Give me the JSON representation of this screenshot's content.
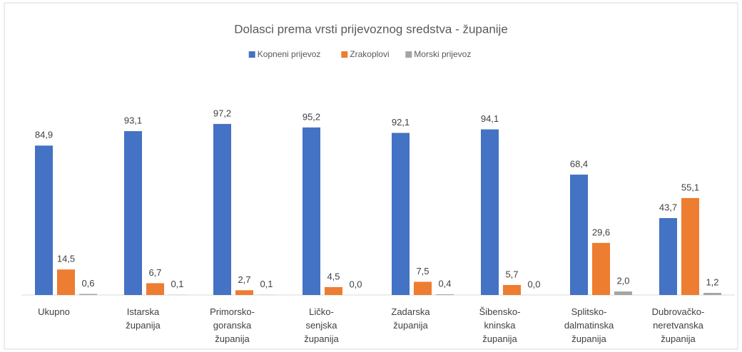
{
  "chart_data": {
    "type": "bar",
    "title": "Dolasci prema vrsti prijevoznog  sredstva - županije",
    "categories": [
      "Ukupno",
      "Istarska\nžupanija",
      "Primorsko-\ngoranska\nžupanija",
      "Ličko-\nsenjska\nžupanija",
      "Zadarska\nžupanija",
      "Šibensko-\nkninska\nžupanija",
      "Splitsko-\ndalmatinska\nžupanija",
      "Dubrovačko-\nneretvanska\nžupanija"
    ],
    "series": [
      {
        "name": "Kopneni prijevoz",
        "color": "#4472c4",
        "values": [
          84.9,
          93.1,
          97.2,
          95.2,
          92.1,
          94.1,
          68.4,
          43.7
        ],
        "value_labels": [
          "84,9",
          "93,1",
          "97,2",
          "95,2",
          "92,1",
          "94,1",
          "68,4",
          "43,7"
        ]
      },
      {
        "name": "Zrakoplovi",
        "color": "#ed7d31",
        "values": [
          14.5,
          6.7,
          2.7,
          4.5,
          7.5,
          5.7,
          29.6,
          55.1
        ],
        "value_labels": [
          "14,5",
          "6,7",
          "2,7",
          "4,5",
          "7,5",
          "5,7",
          "29,6",
          "55,1"
        ]
      },
      {
        "name": "Morski prijevoz",
        "color": "#a5a5a5",
        "values": [
          0.6,
          0.1,
          0.1,
          0.0,
          0.4,
          0.0,
          2.0,
          1.2
        ],
        "value_labels": [
          "0,6",
          "0,1",
          "0,1",
          "0,0",
          "0,4",
          "0,0",
          "2,0",
          "1,2"
        ]
      }
    ],
    "ylim": [
      0,
      100
    ],
    "legend": "top"
  }
}
